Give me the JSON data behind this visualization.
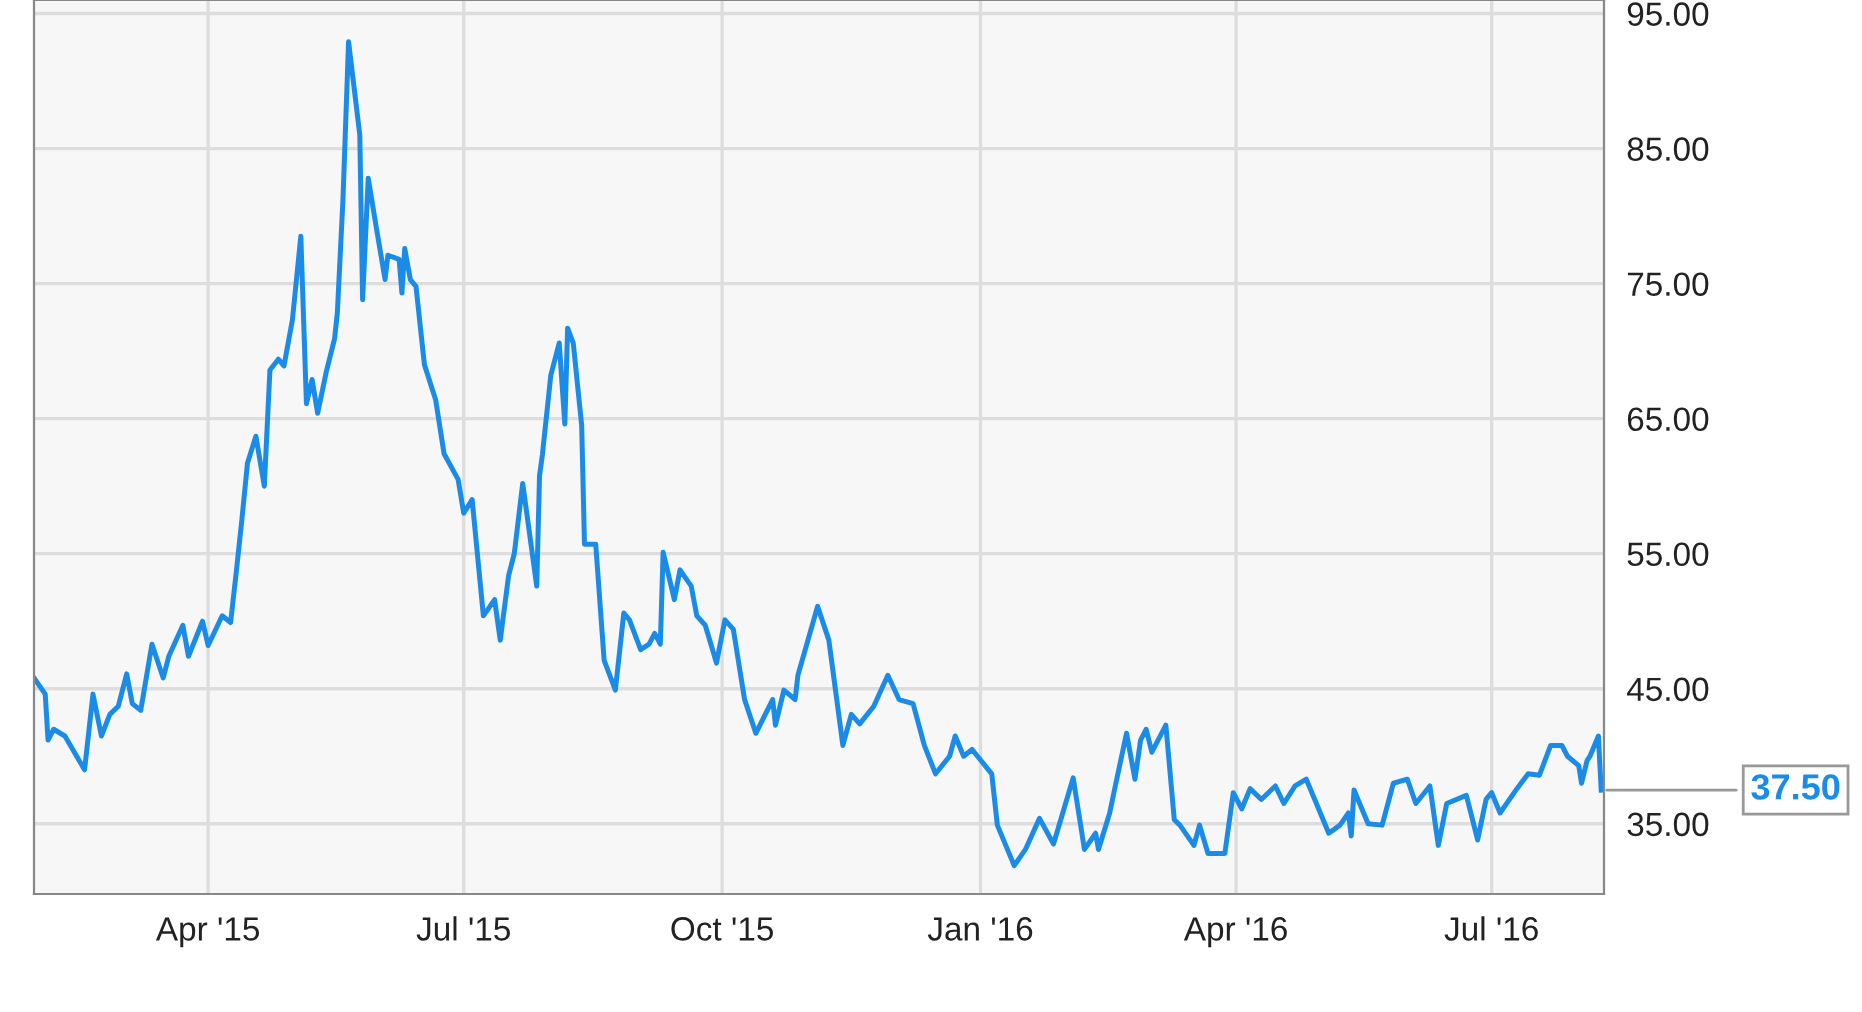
{
  "chart_data": {
    "type": "line",
    "x": [
      "2015-01-29",
      "2015-02-02",
      "2015-02-03",
      "2015-02-05",
      "2015-02-09",
      "2015-02-16",
      "2015-02-19",
      "2015-02-22",
      "2015-02-25",
      "2015-02-28",
      "2015-03-03",
      "2015-03-05",
      "2015-03-08",
      "2015-03-12",
      "2015-03-16",
      "2015-03-18",
      "2015-03-23",
      "2015-03-25",
      "2015-03-30",
      "2015-04-01",
      "2015-04-06",
      "2015-04-09",
      "2015-04-11",
      "2015-04-13",
      "2015-04-15",
      "2015-04-18",
      "2015-04-21",
      "2015-04-23",
      "2015-04-26",
      "2015-04-28",
      "2015-05-01",
      "2015-05-04",
      "2015-05-06",
      "2015-05-08",
      "2015-05-10",
      "2015-05-13",
      "2015-05-16",
      "2015-05-17",
      "2015-05-19",
      "2015-05-21",
      "2015-05-25",
      "2015-05-26",
      "2015-05-28",
      "2015-05-31",
      "2015-06-03",
      "2015-06-04",
      "2015-06-08",
      "2015-06-09",
      "2015-06-10",
      "2015-06-12",
      "2015-06-14",
      "2015-06-17",
      "2015-06-21",
      "2015-06-24",
      "2015-06-29",
      "2015-07-01",
      "2015-07-04",
      "2015-07-08",
      "2015-07-12",
      "2015-07-14",
      "2015-07-17",
      "2015-07-19",
      "2015-07-22",
      "2015-07-27",
      "2015-07-28",
      "2015-07-29",
      "2015-08-01",
      "2015-08-04",
      "2015-08-06",
      "2015-08-07",
      "2015-08-09",
      "2015-08-12",
      "2015-08-13",
      "2015-08-17",
      "2015-08-20",
      "2015-08-24",
      "2015-08-27",
      "2015-08-29",
      "2015-09-02",
      "2015-09-05",
      "2015-09-07",
      "2015-09-09",
      "2015-09-10",
      "2015-09-14",
      "2015-09-16",
      "2015-09-20",
      "2015-09-22",
      "2015-09-25",
      "2015-09-29",
      "2015-10-02",
      "2015-10-05",
      "2015-10-09",
      "2015-10-13",
      "2015-10-19",
      "2015-10-20",
      "2015-10-23",
      "2015-10-27",
      "2015-10-28",
      "2015-11-04",
      "2015-11-08",
      "2015-11-13",
      "2015-11-16",
      "2015-11-19",
      "2015-11-24",
      "2015-11-29",
      "2015-12-03",
      "2015-12-08",
      "2015-12-12",
      "2015-12-16",
      "2015-12-21",
      "2015-12-23",
      "2015-12-26",
      "2015-12-29",
      "2016-01-05",
      "2016-01-07",
      "2016-01-13",
      "2016-01-17",
      "2016-01-22",
      "2016-01-27",
      "2016-01-31",
      "2016-02-03",
      "2016-02-07",
      "2016-02-11",
      "2016-02-12",
      "2016-02-16",
      "2016-02-18",
      "2016-02-22",
      "2016-02-25",
      "2016-02-27",
      "2016-02-29",
      "2016-03-02",
      "2016-03-07",
      "2016-03-10",
      "2016-03-12",
      "2016-03-17",
      "2016-03-19",
      "2016-03-22",
      "2016-03-28",
      "2016-03-31",
      "2016-04-03",
      "2016-04-06",
      "2016-04-10",
      "2016-04-15",
      "2016-04-18",
      "2016-04-22",
      "2016-04-26",
      "2016-04-28",
      "2016-05-04",
      "2016-05-08",
      "2016-05-11",
      "2016-05-12",
      "2016-05-13",
      "2016-05-18",
      "2016-05-23",
      "2016-05-27",
      "2016-06-01",
      "2016-06-04",
      "2016-06-09",
      "2016-06-12",
      "2016-06-15",
      "2016-06-22",
      "2016-06-26",
      "2016-06-29",
      "2016-07-01",
      "2016-07-04",
      "2016-07-10",
      "2016-07-14",
      "2016-07-18",
      "2016-07-22",
      "2016-07-26",
      "2016-07-28",
      "2016-08-01",
      "2016-08-02",
      "2016-08-04",
      "2016-08-05",
      "2016-08-08",
      "2016-08-09"
    ],
    "series": [
      {
        "color": "#1a8ce8",
        "values": [
          45.8,
          44.6,
          41.2,
          42,
          41.5,
          39,
          44.6,
          41.5,
          43.1,
          43.7,
          46.1,
          43.9,
          43.4,
          48.3,
          45.8,
          47.4,
          49.7,
          47.4,
          50,
          48.2,
          50.4,
          49.9,
          53.6,
          57.5,
          61.7,
          63.7,
          60,
          68.6,
          69.4,
          68.9,
          72.3,
          78.5,
          66.1,
          67.9,
          65.4,
          68.4,
          70.9,
          72.8,
          81.2,
          92.9,
          86,
          73.8,
          82.8,
          79,
          75.3,
          77.1,
          76.8,
          74.3,
          77.6,
          75.3,
          74.8,
          69,
          66.4,
          62.4,
          60.5,
          58,
          59,
          50.4,
          51.6,
          48.6,
          53.4,
          55,
          60.2,
          52.6,
          60.8,
          62.3,
          68.2,
          70.6,
          64.6,
          71.7,
          70.6,
          64.5,
          55.7,
          55.7,
          47.1,
          44.9,
          50.6,
          50.1,
          47.9,
          48.3,
          49.1,
          48.3,
          55.1,
          51.6,
          53.8,
          52.6,
          50.4,
          49.7,
          46.9,
          50.1,
          49.4,
          44.2,
          41.7,
          44.2,
          42.3,
          44.9,
          44.2,
          46,
          51.1,
          48.6,
          40.8,
          43.1,
          42.4,
          43.7,
          46,
          44.2,
          43.9,
          40.8,
          38.7,
          40,
          41.5,
          40,
          40.5,
          38.7,
          34.9,
          31.9,
          33.1,
          35.4,
          33.5,
          36.3,
          38.4,
          33.1,
          34.3,
          33.1,
          35.8,
          37.8,
          41.7,
          38.3,
          41.2,
          42,
          40.3,
          42.3,
          35.3,
          34.9,
          33.4,
          34.9,
          32.8,
          32.8,
          37.3,
          36.1,
          37.6,
          36.8,
          37.8,
          36.5,
          37.8,
          38.3,
          37.3,
          34.3,
          34.9,
          35.8,
          34.1,
          37.5,
          35,
          34.9,
          38,
          38.3,
          36.5,
          37.8,
          33.4,
          36.5,
          37.1,
          33.8,
          36.8,
          37.3,
          35.8,
          37.6,
          38.7,
          38.6,
          40.8,
          40.8,
          40,
          39.3,
          38,
          39.7,
          40,
          41.5,
          37.5
        ]
      }
    ],
    "xlim": [
      "2015-01-29",
      "2016-08-10"
    ],
    "xticks": [
      {
        "value": "2015-04-01",
        "label": "Apr '15"
      },
      {
        "value": "2015-07-01",
        "label": "Jul '15"
      },
      {
        "value": "2015-10-01",
        "label": "Oct '15"
      },
      {
        "value": "2016-01-01",
        "label": "Jan '16"
      },
      {
        "value": "2016-04-01",
        "label": "Apr '16"
      },
      {
        "value": "2016-07-01",
        "label": "Jul '16"
      }
    ],
    "ylim": [
      29.8,
      96
    ],
    "yticks": [
      {
        "value": 35,
        "label": "35.00"
      },
      {
        "value": 45,
        "label": "45.00"
      },
      {
        "value": 55,
        "label": "55.00"
      },
      {
        "value": 65,
        "label": "65.00"
      },
      {
        "value": 75,
        "label": "75.00"
      },
      {
        "value": 85,
        "label": "85.00"
      },
      {
        "value": 95,
        "label": "95.00"
      }
    ],
    "grid": true,
    "annotations": [
      {
        "text": "37.50",
        "x": "2016-08-09",
        "y": 37.5
      }
    ]
  }
}
